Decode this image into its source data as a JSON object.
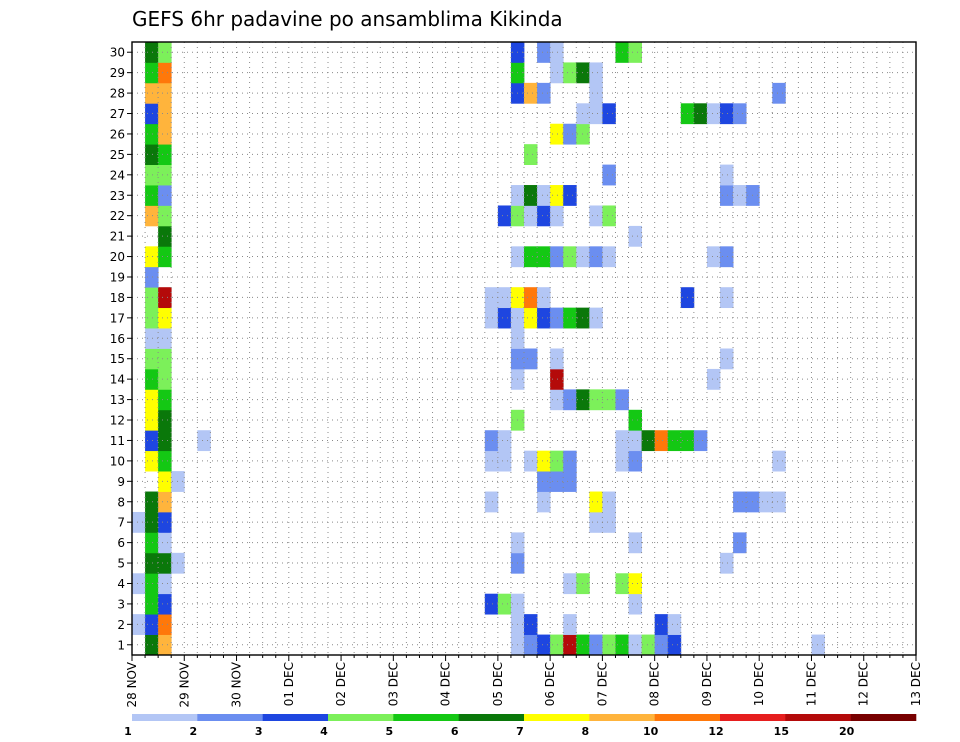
{
  "chart_data": {
    "type": "heatmap",
    "title": "GEFS 6hr padavine po ansamblima Kikinda",
    "xlabel": "",
    "ylabel": "",
    "x_ticks": [
      "28 NOV",
      "29 NOV",
      "30 NOV",
      "01 DEC",
      "02 DEC",
      "03 DEC",
      "04 DEC",
      "05 DEC",
      "06 DEC",
      "07 DEC",
      "08 DEC",
      "09 DEC",
      "10 DEC",
      "11 DEC",
      "12 DEC",
      "13 DEC"
    ],
    "y_ticks": [
      1,
      2,
      3,
      4,
      5,
      6,
      7,
      8,
      9,
      10,
      11,
      12,
      13,
      14,
      15,
      16,
      17,
      18,
      19,
      20,
      21,
      22,
      23,
      24,
      25,
      26,
      27,
      28,
      29,
      30
    ],
    "time_steps_per_day": 4,
    "members": 30,
    "grid": true,
    "legend": "bottom",
    "colorbar": {
      "levels": [
        "1",
        "2",
        "3",
        "4",
        "5",
        "6",
        "7",
        "8",
        "10",
        "12",
        "15",
        "20"
      ],
      "colors": [
        "#b3c6f5",
        "#6b8ef0",
        "#1e46e0",
        "#7cf05a",
        "#14c814",
        "#0a780a",
        "#ffff00",
        "#ffb43c",
        "#ff780a",
        "#e61e1e",
        "#b40a0a",
        "#780000"
      ]
    },
    "cells": [
      [
        1,
        1,
        6
      ],
      [
        1,
        2,
        8
      ],
      [
        1,
        29,
        1
      ],
      [
        1,
        30,
        2
      ],
      [
        1,
        31,
        3
      ],
      [
        1,
        32,
        4
      ],
      [
        1,
        33,
        11
      ],
      [
        1,
        34,
        5
      ],
      [
        1,
        35,
        2
      ],
      [
        1,
        36,
        4
      ],
      [
        1,
        37,
        5
      ],
      [
        1,
        38,
        1
      ],
      [
        1,
        39,
        4
      ],
      [
        1,
        40,
        2
      ],
      [
        1,
        41,
        3
      ],
      [
        1,
        52,
        1
      ],
      [
        2,
        0,
        1
      ],
      [
        2,
        1,
        3
      ],
      [
        2,
        2,
        9
      ],
      [
        2,
        29,
        1
      ],
      [
        2,
        30,
        3
      ],
      [
        2,
        33,
        1
      ],
      [
        2,
        40,
        3
      ],
      [
        2,
        41,
        1
      ],
      [
        2,
        120,
        2
      ],
      [
        2,
        121,
        2
      ],
      [
        3,
        1,
        5
      ],
      [
        3,
        2,
        3
      ],
      [
        3,
        27,
        3
      ],
      [
        3,
        28,
        4
      ],
      [
        3,
        29,
        1
      ],
      [
        3,
        38,
        1
      ],
      [
        3,
        89,
        1
      ],
      [
        3,
        104,
        1
      ],
      [
        3,
        121,
        1
      ],
      [
        4,
        0,
        1
      ],
      [
        4,
        1,
        5
      ],
      [
        4,
        2,
        1
      ],
      [
        4,
        33,
        1
      ],
      [
        4,
        34,
        4
      ],
      [
        4,
        37,
        4
      ],
      [
        4,
        38,
        7
      ],
      [
        4,
        103,
        1
      ],
      [
        4,
        104,
        3
      ],
      [
        4,
        105,
        2
      ],
      [
        4,
        106,
        1
      ],
      [
        5,
        1,
        6
      ],
      [
        5,
        2,
        6
      ],
      [
        5,
        3,
        1
      ],
      [
        5,
        29,
        2
      ],
      [
        5,
        45,
        1
      ],
      [
        5,
        120,
        3
      ],
      [
        6,
        1,
        5
      ],
      [
        6,
        2,
        1
      ],
      [
        6,
        29,
        1
      ],
      [
        6,
        38,
        1
      ],
      [
        6,
        46,
        2
      ],
      [
        6,
        89,
        1
      ],
      [
        6,
        90,
        1
      ],
      [
        6,
        99,
        2
      ],
      [
        6,
        100,
        10
      ],
      [
        6,
        101,
        2
      ],
      [
        6,
        107,
        1
      ],
      [
        7,
        0,
        1
      ],
      [
        7,
        1,
        6
      ],
      [
        7,
        2,
        3
      ],
      [
        7,
        35,
        1
      ],
      [
        7,
        36,
        1
      ],
      [
        8,
        1,
        6
      ],
      [
        8,
        2,
        8
      ],
      [
        8,
        27,
        1
      ],
      [
        8,
        31,
        1
      ],
      [
        8,
        35,
        7
      ],
      [
        8,
        36,
        1
      ],
      [
        8,
        46,
        2
      ],
      [
        8,
        47,
        2
      ],
      [
        8,
        48,
        1
      ],
      [
        8,
        49,
        1
      ],
      [
        8,
        89,
        1
      ],
      [
        8,
        90,
        4
      ],
      [
        8,
        91,
        1
      ],
      [
        8,
        110,
        1
      ],
      [
        8,
        113,
        3
      ],
      [
        8,
        114,
        6
      ],
      [
        8,
        115,
        10
      ],
      [
        8,
        116,
        6
      ],
      [
        9,
        2,
        7
      ],
      [
        9,
        3,
        1
      ],
      [
        9,
        31,
        2
      ],
      [
        9,
        32,
        2
      ],
      [
        9,
        33,
        2
      ],
      [
        9,
        96,
        1
      ],
      [
        9,
        101,
        4
      ],
      [
        10,
        1,
        7
      ],
      [
        10,
        2,
        5
      ],
      [
        10,
        27,
        1
      ],
      [
        10,
        28,
        1
      ],
      [
        10,
        30,
        1
      ],
      [
        10,
        31,
        7
      ],
      [
        10,
        32,
        4
      ],
      [
        10,
        33,
        2
      ],
      [
        10,
        37,
        1
      ],
      [
        10,
        38,
        2
      ],
      [
        10,
        49,
        1
      ],
      [
        10,
        91,
        2
      ],
      [
        10,
        92,
        2
      ],
      [
        10,
        95,
        1
      ],
      [
        10,
        98,
        3
      ],
      [
        10,
        99,
        2
      ],
      [
        10,
        100,
        1
      ],
      [
        11,
        1,
        3
      ],
      [
        11,
        2,
        6
      ],
      [
        11,
        5,
        1
      ],
      [
        11,
        27,
        2
      ],
      [
        11,
        28,
        1
      ],
      [
        11,
        37,
        1
      ],
      [
        11,
        38,
        1
      ],
      [
        11,
        39,
        6
      ],
      [
        11,
        40,
        9
      ],
      [
        11,
        41,
        5
      ],
      [
        11,
        42,
        5
      ],
      [
        11,
        43,
        2
      ],
      [
        11,
        91,
        1
      ],
      [
        11,
        95,
        2
      ],
      [
        11,
        96,
        4
      ],
      [
        11,
        97,
        5
      ],
      [
        11,
        98,
        3
      ],
      [
        11,
        99,
        1
      ],
      [
        11,
        100,
        4
      ],
      [
        11,
        102,
        1
      ],
      [
        11,
        103,
        4
      ],
      [
        11,
        104,
        2
      ],
      [
        11,
        105,
        1
      ],
      [
        11,
        113,
        1
      ],
      [
        11,
        114,
        1
      ],
      [
        12,
        1,
        7
      ],
      [
        12,
        2,
        6
      ],
      [
        12,
        29,
        4
      ],
      [
        12,
        38,
        5
      ],
      [
        12,
        81,
        1
      ],
      [
        12,
        82,
        1
      ],
      [
        12,
        96,
        1
      ],
      [
        12,
        97,
        1
      ],
      [
        13,
        1,
        7
      ],
      [
        13,
        2,
        5
      ],
      [
        13,
        32,
        1
      ],
      [
        13,
        33,
        2
      ],
      [
        13,
        34,
        6
      ],
      [
        13,
        35,
        4
      ],
      [
        13,
        36,
        4
      ],
      [
        13,
        37,
        2
      ],
      [
        13,
        89,
        1
      ],
      [
        13,
        90,
        1
      ],
      [
        13,
        91,
        1
      ],
      [
        13,
        96,
        1
      ],
      [
        13,
        114,
        1
      ],
      [
        14,
        1,
        5
      ],
      [
        14,
        2,
        4
      ],
      [
        14,
        29,
        1
      ],
      [
        14,
        32,
        11
      ],
      [
        14,
        44,
        1
      ],
      [
        14,
        74,
        1
      ],
      [
        14,
        90,
        9
      ],
      [
        14,
        91,
        5
      ],
      [
        14,
        93,
        1
      ],
      [
        14,
        95,
        4
      ],
      [
        14,
        114,
        4
      ],
      [
        14,
        115,
        2
      ],
      [
        15,
        1,
        4
      ],
      [
        15,
        2,
        4
      ],
      [
        15,
        29,
        2
      ],
      [
        15,
        30,
        2
      ],
      [
        15,
        32,
        1
      ],
      [
        15,
        45,
        1
      ],
      [
        15,
        96,
        1
      ],
      [
        15,
        97,
        9
      ],
      [
        16,
        1,
        1
      ],
      [
        16,
        2,
        1
      ],
      [
        16,
        29,
        1
      ],
      [
        16,
        83,
        1
      ],
      [
        16,
        84,
        1
      ],
      [
        16,
        111,
        4
      ],
      [
        16,
        112,
        6
      ],
      [
        16,
        113,
        2
      ],
      [
        17,
        1,
        4
      ],
      [
        17,
        2,
        7
      ],
      [
        17,
        27,
        1
      ],
      [
        17,
        28,
        3
      ],
      [
        17,
        29,
        1
      ],
      [
        17,
        30,
        7
      ],
      [
        17,
        31,
        3
      ],
      [
        17,
        32,
        2
      ],
      [
        17,
        33,
        5
      ],
      [
        17,
        34,
        6
      ],
      [
        17,
        35,
        1
      ],
      [
        17,
        101,
        4
      ],
      [
        17,
        102,
        5
      ],
      [
        17,
        103,
        7
      ],
      [
        17,
        104,
        5
      ],
      [
        17,
        105,
        3
      ],
      [
        17,
        106,
        4
      ],
      [
        17,
        107,
        1
      ],
      [
        18,
        1,
        4
      ],
      [
        18,
        2,
        11
      ],
      [
        18,
        27,
        1
      ],
      [
        18,
        28,
        1
      ],
      [
        18,
        29,
        7
      ],
      [
        18,
        30,
        9
      ],
      [
        18,
        31,
        1
      ],
      [
        18,
        42,
        3
      ],
      [
        18,
        45,
        1
      ],
      [
        18,
        95,
        2
      ],
      [
        18,
        106,
        3
      ],
      [
        18,
        107,
        1
      ],
      [
        18,
        108,
        1
      ],
      [
        18,
        116,
        8
      ],
      [
        19,
        1,
        2
      ],
      [
        19,
        102,
        1
      ],
      [
        20,
        1,
        7
      ],
      [
        20,
        2,
        5
      ],
      [
        20,
        29,
        1
      ],
      [
        20,
        30,
        5
      ],
      [
        20,
        31,
        5
      ],
      [
        20,
        32,
        2
      ],
      [
        20,
        33,
        4
      ],
      [
        20,
        34,
        1
      ],
      [
        20,
        35,
        2
      ],
      [
        20,
        36,
        1
      ],
      [
        20,
        44,
        1
      ],
      [
        20,
        45,
        2
      ],
      [
        20,
        95,
        6
      ],
      [
        20,
        96,
        2
      ],
      [
        20,
        114,
        4
      ],
      [
        20,
        115,
        2
      ],
      [
        20,
        116,
        1
      ],
      [
        21,
        2,
        6
      ],
      [
        21,
        38,
        1
      ],
      [
        21,
        97,
        1
      ],
      [
        21,
        98,
        1
      ],
      [
        21,
        114,
        1
      ],
      [
        22,
        1,
        8
      ],
      [
        22,
        2,
        4
      ],
      [
        22,
        28,
        3
      ],
      [
        22,
        29,
        4
      ],
      [
        22,
        30,
        1
      ],
      [
        22,
        31,
        3
      ],
      [
        22,
        32,
        1
      ],
      [
        22,
        35,
        1
      ],
      [
        22,
        36,
        4
      ],
      [
        22,
        94,
        2
      ],
      [
        22,
        95,
        3
      ],
      [
        22,
        96,
        1
      ],
      [
        22,
        97,
        1
      ],
      [
        23,
        1,
        5
      ],
      [
        23,
        2,
        2
      ],
      [
        23,
        29,
        1
      ],
      [
        23,
        30,
        6
      ],
      [
        23,
        31,
        1
      ],
      [
        23,
        32,
        7
      ],
      [
        23,
        33,
        3
      ],
      [
        23,
        45,
        2
      ],
      [
        23,
        46,
        1
      ],
      [
        23,
        47,
        2
      ],
      [
        24,
        1,
        4
      ],
      [
        24,
        2,
        4
      ],
      [
        24,
        36,
        2
      ],
      [
        24,
        45,
        1
      ],
      [
        24,
        102,
        1
      ],
      [
        24,
        103,
        2
      ],
      [
        24,
        110,
        5
      ],
      [
        24,
        111,
        3
      ],
      [
        24,
        112,
        2
      ],
      [
        25,
        1,
        6
      ],
      [
        25,
        2,
        5
      ],
      [
        25,
        30,
        4
      ],
      [
        25,
        83,
        3
      ],
      [
        25,
        84,
        1
      ],
      [
        25,
        104,
        7
      ],
      [
        25,
        105,
        7
      ],
      [
        25,
        106,
        8
      ],
      [
        25,
        107,
        1
      ],
      [
        25,
        108,
        12
      ],
      [
        25,
        109,
        5
      ],
      [
        26,
        1,
        5
      ],
      [
        26,
        2,
        8
      ],
      [
        26,
        32,
        7
      ],
      [
        26,
        33,
        2
      ],
      [
        26,
        34,
        4
      ],
      [
        26,
        104,
        1
      ],
      [
        26,
        105,
        6
      ],
      [
        27,
        1,
        3
      ],
      [
        27,
        2,
        8
      ],
      [
        27,
        34,
        1
      ],
      [
        27,
        35,
        1
      ],
      [
        27,
        36,
        3
      ],
      [
        27,
        42,
        5
      ],
      [
        27,
        43,
        6
      ],
      [
        27,
        44,
        1
      ],
      [
        27,
        45,
        3
      ],
      [
        27,
        46,
        2
      ],
      [
        28,
        1,
        8
      ],
      [
        28,
        2,
        8
      ],
      [
        28,
        29,
        3
      ],
      [
        28,
        30,
        8
      ],
      [
        28,
        31,
        2
      ],
      [
        28,
        35,
        1
      ],
      [
        28,
        49,
        2
      ],
      [
        28,
        116,
        4
      ],
      [
        29,
        1,
        5
      ],
      [
        29,
        2,
        9
      ],
      [
        29,
        29,
        5
      ],
      [
        29,
        32,
        1
      ],
      [
        29,
        33,
        4
      ],
      [
        29,
        34,
        6
      ],
      [
        29,
        35,
        1
      ],
      [
        29,
        107,
        1
      ],
      [
        30,
        1,
        6
      ],
      [
        30,
        2,
        4
      ],
      [
        30,
        29,
        3
      ],
      [
        30,
        31,
        2
      ],
      [
        30,
        32,
        1
      ],
      [
        30,
        37,
        5
      ],
      [
        30,
        38,
        4
      ],
      [
        30,
        104,
        1
      ],
      [
        30,
        105,
        1
      ],
      [
        30,
        106,
        3
      ]
    ]
  }
}
